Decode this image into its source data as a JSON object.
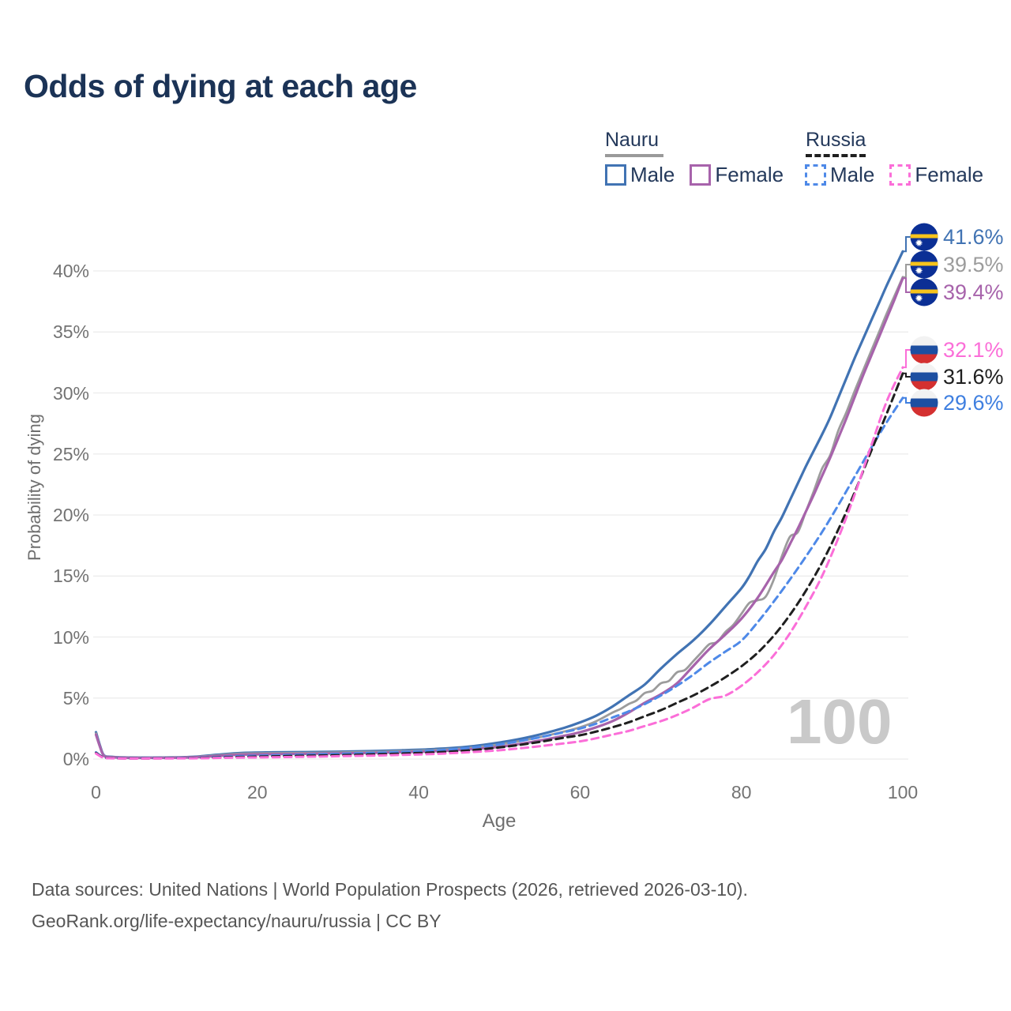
{
  "title": "Odds of dying at each age",
  "watermark": "100",
  "legend": {
    "groups": [
      {
        "name": "Nauru",
        "style": "solid",
        "underline_color": "#9a9a9a",
        "items": [
          {
            "label": "Male",
            "color": "#4173b3",
            "dashed": false
          },
          {
            "label": "Female",
            "color": "#a763ab",
            "dashed": false
          }
        ]
      },
      {
        "name": "Russia",
        "style": "dashed",
        "underline_color": "#1f1f1f",
        "items": [
          {
            "label": "Male",
            "color": "#4e89e8",
            "dashed": true
          },
          {
            "label": "Female",
            "color": "#fb6ed8",
            "dashed": true
          }
        ]
      }
    ]
  },
  "axes": {
    "y_label": "Probability of dying",
    "x_label": "Age",
    "y_ticks": [
      0,
      5,
      10,
      15,
      20,
      25,
      30,
      35,
      40
    ],
    "x_ticks": [
      0,
      20,
      40,
      60,
      80,
      100
    ]
  },
  "end_labels": [
    {
      "value": "41.6%",
      "value_num": 41.6,
      "color": "#4173b3",
      "flag": "nauru",
      "series": "nauru-male"
    },
    {
      "value": "39.5%",
      "value_num": 39.5,
      "color": "#9c9c9c",
      "flag": "nauru",
      "series": "nauru-total"
    },
    {
      "value": "39.4%",
      "value_num": 39.4,
      "color": "#a763ab",
      "flag": "nauru",
      "series": "nauru-female"
    },
    {
      "value": "32.1%",
      "value_num": 32.1,
      "color": "#fb6ed8",
      "flag": "russia",
      "series": "russia-female"
    },
    {
      "value": "31.6%",
      "value_num": 31.6,
      "color": "#1f1f1f",
      "flag": "russia",
      "series": "russia-total"
    },
    {
      "value": "29.6%",
      "value_num": 29.6,
      "color": "#3f7fe0",
      "flag": "russia",
      "series": "russia-male"
    }
  ],
  "footer": {
    "line1": "Data sources: United Nations | World Population Prospects (2026, retrieved 2026-03-10).",
    "line2": "GeoRank.org/life-expectancy/nauru/russia | CC BY"
  },
  "chart_data": {
    "type": "line",
    "title": "Odds of dying at each age",
    "xlabel": "Age",
    "ylabel": "Probability of dying",
    "xlim": [
      0,
      100
    ],
    "ylim": [
      0,
      42
    ],
    "y_unit": "%",
    "grid": "horizontal",
    "legend_position": "top-right",
    "series": [
      {
        "id": "nauru-male",
        "name": "Nauru Male",
        "color": "#4173b3",
        "dash": false,
        "width": 3.2,
        "end_label": "41.6%",
        "points": [
          [
            0,
            2.2
          ],
          [
            0.5,
            1.1
          ],
          [
            1,
            0.3
          ],
          [
            2,
            0.18
          ],
          [
            4,
            0.12
          ],
          [
            8,
            0.12
          ],
          [
            12,
            0.18
          ],
          [
            15,
            0.35
          ],
          [
            18,
            0.5
          ],
          [
            22,
            0.55
          ],
          [
            26,
            0.57
          ],
          [
            30,
            0.6
          ],
          [
            34,
            0.65
          ],
          [
            38,
            0.72
          ],
          [
            42,
            0.82
          ],
          [
            46,
            1.0
          ],
          [
            50,
            1.35
          ],
          [
            54,
            1.85
          ],
          [
            58,
            2.55
          ],
          [
            60,
            3.0
          ],
          [
            62,
            3.55
          ],
          [
            64,
            4.3
          ],
          [
            66,
            5.2
          ],
          [
            68,
            6.1
          ],
          [
            70,
            7.4
          ],
          [
            72,
            8.6
          ],
          [
            74,
            9.7
          ],
          [
            76,
            11.0
          ],
          [
            78,
            12.5
          ],
          [
            80,
            14.0
          ],
          [
            81,
            15.0
          ],
          [
            82,
            16.2
          ],
          [
            83,
            17.2
          ],
          [
            84,
            18.6
          ],
          [
            85,
            19.8
          ],
          [
            86,
            21.2
          ],
          [
            87,
            22.6
          ],
          [
            88,
            24.0
          ],
          [
            89,
            25.3
          ],
          [
            90,
            26.6
          ],
          [
            91,
            28.0
          ],
          [
            92,
            29.6
          ],
          [
            93,
            31.2
          ],
          [
            94,
            32.8
          ],
          [
            95,
            34.3
          ],
          [
            96,
            35.8
          ],
          [
            97,
            37.3
          ],
          [
            98,
            38.8
          ],
          [
            99,
            40.2
          ],
          [
            100,
            41.6
          ]
        ]
      },
      {
        "id": "nauru-total",
        "name": "Nauru (total)",
        "color": "#9c9c9c",
        "dash": false,
        "width": 2.8,
        "end_label": "39.5%",
        "points": [
          [
            0,
            2.1
          ],
          [
            0.5,
            1.05
          ],
          [
            1,
            0.27
          ],
          [
            2,
            0.16
          ],
          [
            4,
            0.11
          ],
          [
            8,
            0.11
          ],
          [
            12,
            0.16
          ],
          [
            15,
            0.3
          ],
          [
            18,
            0.44
          ],
          [
            22,
            0.48
          ],
          [
            26,
            0.5
          ],
          [
            30,
            0.54
          ],
          [
            34,
            0.58
          ],
          [
            38,
            0.65
          ],
          [
            42,
            0.74
          ],
          [
            46,
            0.9
          ],
          [
            50,
            1.2
          ],
          [
            54,
            1.65
          ],
          [
            58,
            2.25
          ],
          [
            60,
            2.6
          ],
          [
            62,
            3.1
          ],
          [
            64,
            3.8
          ],
          [
            65,
            4.1
          ],
          [
            66,
            4.5
          ],
          [
            67,
            4.8
          ],
          [
            68,
            5.4
          ],
          [
            69,
            5.6
          ],
          [
            70,
            6.2
          ],
          [
            71,
            6.4
          ],
          [
            72,
            7.1
          ],
          [
            73,
            7.3
          ],
          [
            74,
            8.0
          ],
          [
            75,
            8.7
          ],
          [
            76,
            9.4
          ],
          [
            77,
            9.6
          ],
          [
            78,
            10.4
          ],
          [
            79,
            11.0
          ],
          [
            80,
            11.9
          ],
          [
            81,
            12.8
          ],
          [
            82,
            13.0
          ],
          [
            83,
            13.3
          ],
          [
            84,
            14.7
          ],
          [
            85,
            16.6
          ],
          [
            86,
            18.2
          ],
          [
            87,
            18.6
          ],
          [
            88,
            20.3
          ],
          [
            89,
            22.0
          ],
          [
            90,
            23.8
          ],
          [
            91,
            24.9
          ],
          [
            92,
            26.9
          ],
          [
            93,
            28.4
          ],
          [
            94,
            30.1
          ],
          [
            95,
            31.7
          ],
          [
            96,
            33.3
          ],
          [
            97,
            34.9
          ],
          [
            98,
            36.5
          ],
          [
            99,
            38.0
          ],
          [
            100,
            39.5
          ]
        ]
      },
      {
        "id": "nauru-female",
        "name": "Nauru Female",
        "color": "#a763ab",
        "dash": false,
        "width": 3.2,
        "end_label": "39.4%",
        "points": [
          [
            0,
            2.0
          ],
          [
            0.5,
            1.0
          ],
          [
            1,
            0.25
          ],
          [
            2,
            0.15
          ],
          [
            4,
            0.1
          ],
          [
            8,
            0.1
          ],
          [
            12,
            0.14
          ],
          [
            15,
            0.25
          ],
          [
            18,
            0.36
          ],
          [
            22,
            0.4
          ],
          [
            26,
            0.43
          ],
          [
            30,
            0.46
          ],
          [
            34,
            0.5
          ],
          [
            38,
            0.56
          ],
          [
            42,
            0.64
          ],
          [
            46,
            0.78
          ],
          [
            50,
            1.0
          ],
          [
            54,
            1.4
          ],
          [
            58,
            1.9
          ],
          [
            60,
            2.2
          ],
          [
            62,
            2.6
          ],
          [
            64,
            3.1
          ],
          [
            66,
            3.8
          ],
          [
            68,
            4.6
          ],
          [
            70,
            5.3
          ],
          [
            72,
            6.2
          ],
          [
            74,
            7.6
          ],
          [
            76,
            9.0
          ],
          [
            78,
            10.2
          ],
          [
            80,
            11.5
          ],
          [
            82,
            13.2
          ],
          [
            84,
            15.3
          ],
          [
            85,
            16.3
          ],
          [
            86,
            17.6
          ],
          [
            87,
            18.9
          ],
          [
            88,
            20.3
          ],
          [
            89,
            21.7
          ],
          [
            90,
            23.2
          ],
          [
            91,
            24.7
          ],
          [
            92,
            26.3
          ],
          [
            93,
            27.9
          ],
          [
            94,
            29.6
          ],
          [
            95,
            31.3
          ],
          [
            96,
            32.9
          ],
          [
            97,
            34.5
          ],
          [
            98,
            36.1
          ],
          [
            99,
            37.7
          ],
          [
            100,
            39.4
          ]
        ]
      },
      {
        "id": "russia-male",
        "name": "Russia Male",
        "color": "#4e89e8",
        "dash": true,
        "width": 3,
        "end_label": "29.6%",
        "points": [
          [
            0,
            0.55
          ],
          [
            0.5,
            0.3
          ],
          [
            1,
            0.12
          ],
          [
            2,
            0.08
          ],
          [
            4,
            0.06
          ],
          [
            8,
            0.07
          ],
          [
            12,
            0.1
          ],
          [
            15,
            0.16
          ],
          [
            18,
            0.24
          ],
          [
            22,
            0.3
          ],
          [
            26,
            0.36
          ],
          [
            30,
            0.43
          ],
          [
            34,
            0.5
          ],
          [
            38,
            0.58
          ],
          [
            42,
            0.7
          ],
          [
            46,
            0.9
          ],
          [
            50,
            1.2
          ],
          [
            54,
            1.65
          ],
          [
            58,
            2.2
          ],
          [
            60,
            2.5
          ],
          [
            62,
            2.9
          ],
          [
            64,
            3.4
          ],
          [
            66,
            3.9
          ],
          [
            68,
            4.5
          ],
          [
            70,
            5.2
          ],
          [
            72,
            6.0
          ],
          [
            74,
            6.9
          ],
          [
            76,
            7.9
          ],
          [
            78,
            8.8
          ],
          [
            80,
            9.7
          ],
          [
            82,
            11.2
          ],
          [
            84,
            12.9
          ],
          [
            86,
            14.7
          ],
          [
            88,
            16.6
          ],
          [
            90,
            18.6
          ],
          [
            92,
            20.8
          ],
          [
            94,
            23.1
          ],
          [
            96,
            25.4
          ],
          [
            98,
            27.6
          ],
          [
            100,
            29.6
          ]
        ]
      },
      {
        "id": "russia-total",
        "name": "Russia (total)",
        "color": "#1f1f1f",
        "dash": true,
        "width": 3,
        "end_label": "31.6%",
        "points": [
          [
            0,
            0.5
          ],
          [
            0.5,
            0.27
          ],
          [
            1,
            0.11
          ],
          [
            2,
            0.07
          ],
          [
            4,
            0.05
          ],
          [
            8,
            0.06
          ],
          [
            12,
            0.08
          ],
          [
            15,
            0.12
          ],
          [
            18,
            0.17
          ],
          [
            22,
            0.22
          ],
          [
            26,
            0.27
          ],
          [
            30,
            0.32
          ],
          [
            34,
            0.38
          ],
          [
            38,
            0.45
          ],
          [
            42,
            0.55
          ],
          [
            46,
            0.7
          ],
          [
            50,
            0.95
          ],
          [
            54,
            1.3
          ],
          [
            58,
            1.75
          ],
          [
            60,
            1.95
          ],
          [
            62,
            2.25
          ],
          [
            64,
            2.6
          ],
          [
            66,
            3.0
          ],
          [
            68,
            3.5
          ],
          [
            70,
            4.0
          ],
          [
            72,
            4.6
          ],
          [
            74,
            5.2
          ],
          [
            76,
            5.9
          ],
          [
            78,
            6.7
          ],
          [
            80,
            7.6
          ],
          [
            82,
            8.7
          ],
          [
            84,
            10.1
          ],
          [
            86,
            11.8
          ],
          [
            88,
            13.8
          ],
          [
            90,
            16.1
          ],
          [
            92,
            18.8
          ],
          [
            94,
            21.8
          ],
          [
            96,
            25.1
          ],
          [
            98,
            28.3
          ],
          [
            100,
            31.6
          ]
        ]
      },
      {
        "id": "russia-female",
        "name": "Russia Female",
        "color": "#fb6ed8",
        "dash": true,
        "width": 3,
        "end_label": "32.1%",
        "points": [
          [
            0,
            0.45
          ],
          [
            0.5,
            0.24
          ],
          [
            1,
            0.1
          ],
          [
            2,
            0.06
          ],
          [
            4,
            0.04
          ],
          [
            8,
            0.05
          ],
          [
            12,
            0.06
          ],
          [
            15,
            0.09
          ],
          [
            18,
            0.12
          ],
          [
            22,
            0.15
          ],
          [
            26,
            0.19
          ],
          [
            30,
            0.23
          ],
          [
            34,
            0.28
          ],
          [
            38,
            0.34
          ],
          [
            42,
            0.42
          ],
          [
            46,
            0.55
          ],
          [
            50,
            0.72
          ],
          [
            54,
            0.98
          ],
          [
            58,
            1.28
          ],
          [
            60,
            1.45
          ],
          [
            62,
            1.7
          ],
          [
            64,
            2.0
          ],
          [
            66,
            2.3
          ],
          [
            68,
            2.7
          ],
          [
            70,
            3.1
          ],
          [
            72,
            3.6
          ],
          [
            74,
            4.2
          ],
          [
            76,
            4.9
          ],
          [
            78,
            5.2
          ],
          [
            80,
            6.0
          ],
          [
            82,
            7.1
          ],
          [
            84,
            8.5
          ],
          [
            86,
            10.3
          ],
          [
            88,
            12.5
          ],
          [
            90,
            15.0
          ],
          [
            92,
            18.1
          ],
          [
            94,
            21.6
          ],
          [
            96,
            25.5
          ],
          [
            98,
            29.3
          ],
          [
            100,
            32.1
          ]
        ]
      }
    ]
  }
}
